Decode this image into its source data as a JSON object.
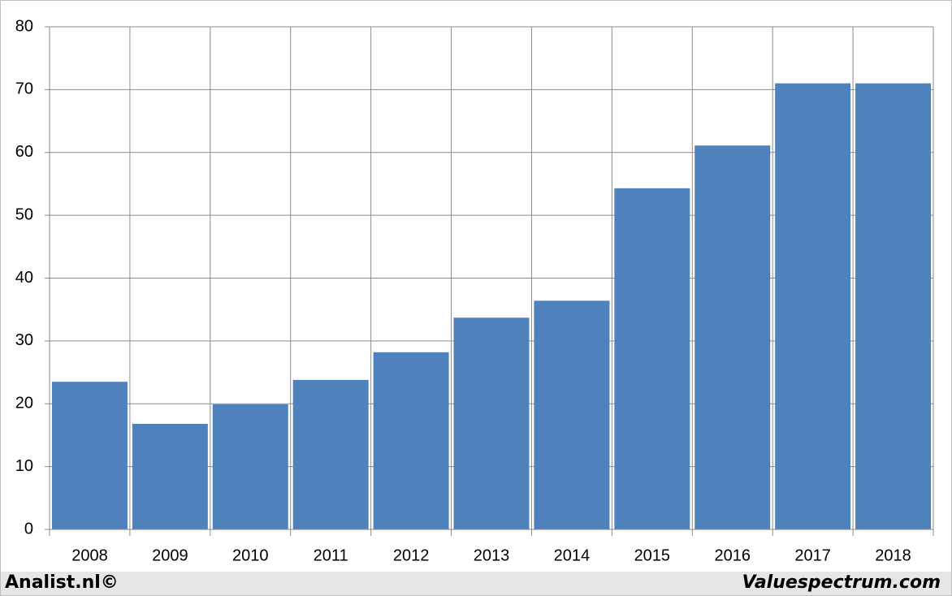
{
  "chart_data": {
    "type": "bar",
    "categories": [
      "2008",
      "2009",
      "2010",
      "2011",
      "2012",
      "2013",
      "2014",
      "2015",
      "2016",
      "2017",
      "2018"
    ],
    "values": [
      23.5,
      16.8,
      19.9,
      23.8,
      28.2,
      33.7,
      36.4,
      54.3,
      61.1,
      71.0,
      71.0
    ],
    "color": "#4f81bd",
    "ylim": [
      0,
      80
    ],
    "yticks": [
      0,
      10,
      20,
      30,
      40,
      50,
      60,
      70,
      80
    ],
    "grid": true,
    "annotations": [
      "Analist.nl©",
      "Valuespectrum.com"
    ]
  }
}
